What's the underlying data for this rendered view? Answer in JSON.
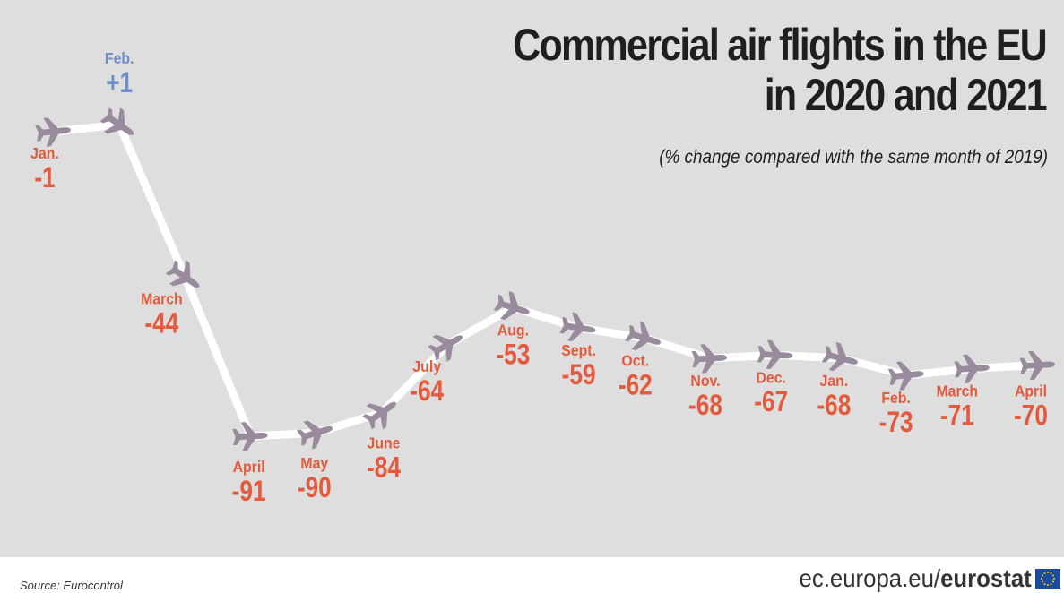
{
  "title_line1": "Commercial air flights in the EU",
  "title_line2": "in 2020 and 2021",
  "subtitle": "(% change compared with the same month of 2019)",
  "source": "Source: Eurocontrol",
  "brand_prefix": "ec.europa.eu/",
  "brand_name": "eurostat",
  "colors": {
    "background": "#dedede",
    "negative": "#e35a3c",
    "positive": "#6f8fc7",
    "plane": "#9a8a9e",
    "trail": "#ffffff",
    "title": "#1f1f1f",
    "flag": "#1b4aa3"
  },
  "chart_data": {
    "type": "line",
    "title": "Commercial air flights in the EU in 2020 and 2021",
    "subtitle": "(% change compared with the same month of 2019)",
    "marker_icon": "airplane-icon",
    "x": [
      "Jan.",
      "Feb.",
      "March",
      "April",
      "May",
      "June",
      "July",
      "Aug.",
      "Sept.",
      "Oct.",
      "Nov.",
      "Dec.",
      "Jan.",
      "Feb.",
      "March",
      "April"
    ],
    "y": [
      -1,
      1,
      -44,
      -91,
      -90,
      -84,
      -64,
      -53,
      -59,
      -62,
      -68,
      -67,
      -68,
      -73,
      -71,
      -70
    ],
    "value_labels": [
      "-1",
      "+1",
      "-44",
      "-91",
      "-90",
      "-84",
      "-64",
      "-53",
      "-59",
      "-62",
      "-68",
      "-67",
      "-68",
      "-73",
      "-71",
      "-70"
    ],
    "years": "2020 (Jan.–Dec.), 2021 (Jan.–April)",
    "axes_shown": false,
    "grid": false,
    "legend": false
  }
}
